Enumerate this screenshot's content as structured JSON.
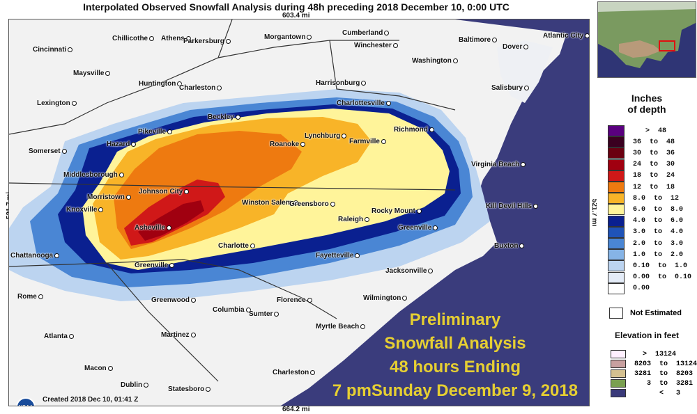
{
  "title": "Interpolated Observed Snowfall Analysis during 48h preceding 2018 December 10, 0:00 UTC",
  "scale": {
    "top": "603.4 mi",
    "bottom": "664.2 mi",
    "left": "521.7 mi",
    "right": "521.7 mi"
  },
  "cities": [
    {
      "name": "Chillicothe"
    },
    {
      "name": "Athens"
    },
    {
      "name": "Parkersburg"
    },
    {
      "name": "Morgantown"
    },
    {
      "name": "Cumberland"
    },
    {
      "name": "Winchester"
    },
    {
      "name": "Baltimore"
    },
    {
      "name": "Atlantic City"
    },
    {
      "name": "Cincinnati"
    },
    {
      "name": "Dover"
    },
    {
      "name": "Washington"
    },
    {
      "name": "Maysville"
    },
    {
      "name": "Huntington"
    },
    {
      "name": "Charleston"
    },
    {
      "name": "Harrisonburg"
    },
    {
      "name": "Salisbury"
    },
    {
      "name": "Lexington"
    },
    {
      "name": "Charlottesville"
    },
    {
      "name": "Beckley"
    },
    {
      "name": "Pikeville"
    },
    {
      "name": "Richmond"
    },
    {
      "name": "Lynchburg"
    },
    {
      "name": "Farmville"
    },
    {
      "name": "Hazard"
    },
    {
      "name": "Roanoke"
    },
    {
      "name": "Somerset"
    },
    {
      "name": "Virginia Beach"
    },
    {
      "name": "Middlesborough"
    },
    {
      "name": "Johnson City"
    },
    {
      "name": "Morristown"
    },
    {
      "name": "Winston Salem"
    },
    {
      "name": "Greensboro"
    },
    {
      "name": "Kill Devil Hills"
    },
    {
      "name": "Knoxville"
    },
    {
      "name": "Rocky Mount"
    },
    {
      "name": "Raleigh"
    },
    {
      "name": "Asheville"
    },
    {
      "name": "Greenville"
    },
    {
      "name": "Charlotte"
    },
    {
      "name": "Buxton"
    },
    {
      "name": "Chattanooga"
    },
    {
      "name": "Fayetteville"
    },
    {
      "name": "Greenville"
    },
    {
      "name": "Jacksonville"
    },
    {
      "name": "Rome"
    },
    {
      "name": "Greenwood"
    },
    {
      "name": "Wilmington"
    },
    {
      "name": "Florence"
    },
    {
      "name": "Columbia"
    },
    {
      "name": "Sumter"
    },
    {
      "name": "Myrtle Beach"
    },
    {
      "name": "Atlanta"
    },
    {
      "name": "Martinez"
    },
    {
      "name": "Macon"
    },
    {
      "name": "Charleston"
    },
    {
      "name": "Dublin"
    },
    {
      "name": "Statesboro"
    }
  ],
  "overlay": {
    "line1": "Preliminary",
    "line2": "Snowfall Analysis",
    "line3": "48 hours Ending",
    "line4": "7 pmSunday December 9, 2018"
  },
  "created": "Created 2018 Dec 10, 01:41 Z",
  "noaa_logo": "NOAA",
  "legend": {
    "title_line1": "Inches",
    "title_line2": "of depth",
    "rows": [
      {
        "label": "   >  48",
        "color": "#5a007f"
      },
      {
        "label": "36  to  48",
        "color": "#3a0020"
      },
      {
        "label": "30  to  36",
        "color": "#6a0010"
      },
      {
        "label": "24  to  30",
        "color": "#a00010"
      },
      {
        "label": "18  to  24",
        "color": "#d01818"
      },
      {
        "label": "12  to  18",
        "color": "#ee7a10"
      },
      {
        "label": "8.0  to  12",
        "color": "#f8b428"
      },
      {
        "label": "6.0  to  8.0",
        "color": "#fff49a"
      },
      {
        "label": "4.0  to  6.0",
        "color": "#0a2090"
      },
      {
        "label": "3.0  to  4.0",
        "color": "#1f53b8"
      },
      {
        "label": "2.0  to  3.0",
        "color": "#4a86d4"
      },
      {
        "label": "1.0  to  2.0",
        "color": "#86b4e6"
      },
      {
        "label": "0.10  to  1.0",
        "color": "#bcd4f0"
      },
      {
        "label": "0.00  to  0.10",
        "color": "#e4ecf8"
      },
      {
        "label": "0.00",
        "color": "#ffffff"
      }
    ],
    "not_estimated": "Not Estimated",
    "elevation_title": "Elevation in feet",
    "elevation_rows": [
      {
        "label": "  >  13124",
        "color": "#fff0ff"
      },
      {
        "label": "8203  to  13124",
        "color": "#c8a0a0"
      },
      {
        "label": "3281  to  8203",
        "color": "#d4c090"
      },
      {
        "label": "   3  to  3281",
        "color": "#7aa050"
      },
      {
        "label": "      <   3",
        "color": "#3a3a7a"
      }
    ]
  },
  "colors": {
    "ocean": "#3a3c7c",
    "land": "#f2f2f2",
    "accent_text": "#e6cf32"
  }
}
